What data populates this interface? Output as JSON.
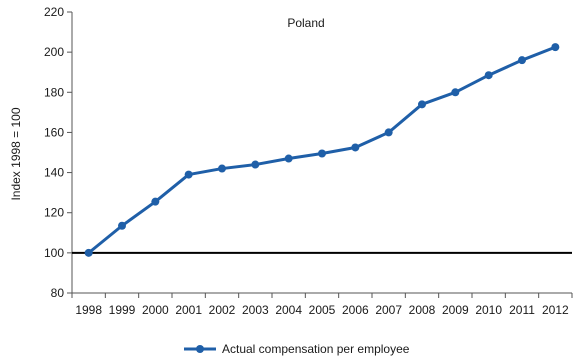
{
  "chart_data": {
    "type": "line",
    "title": "Poland",
    "xlabel": "",
    "ylabel": "Index 1998 = 100",
    "ylim": [
      80,
      220
    ],
    "yticks": [
      80,
      100,
      120,
      140,
      160,
      180,
      200,
      220
    ],
    "categories": [
      "1998",
      "1999",
      "2000",
      "2001",
      "2002",
      "2003",
      "2004",
      "2005",
      "2006",
      "2007",
      "2008",
      "2009",
      "2010",
      "2011",
      "2012"
    ],
    "series": [
      {
        "name": "Actual compensation per employee",
        "values": [
          100,
          113.5,
          125.5,
          139,
          142,
          144,
          147,
          149.5,
          152.5,
          160,
          174,
          180,
          188.5,
          196,
          202.5
        ],
        "color": "#1f5fa8"
      }
    ],
    "reference_line": {
      "value": 100,
      "color": "#000000"
    },
    "legend_position": "bottom-center",
    "grid": false
  }
}
